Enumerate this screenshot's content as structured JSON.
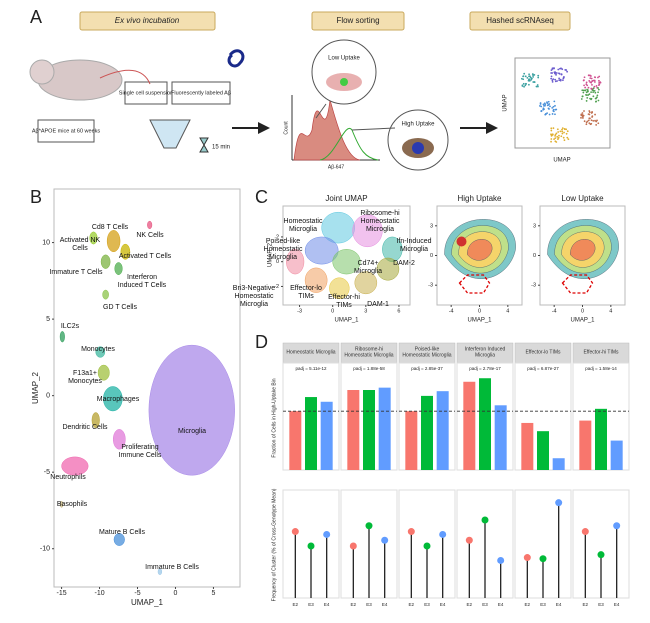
{
  "panel_a": {
    "letter": "A",
    "steps": [
      "Ex vivo incubation",
      "Flow sorting",
      "Hashed scRNAseq"
    ],
    "mouse_label": "Aβ*APOE mice at 60 weeks",
    "single_cell": "Single cell suspension",
    "fluor": "Fluorescently labeled Aβ",
    "time": "15 min",
    "low": "Low Uptake",
    "high": "High Uptake",
    "hist_y": "Count",
    "hist_x": "Aβ-647",
    "umap_x": "UMAP",
    "umap_y": "UMAP"
  },
  "panel_b": {
    "letter": "B",
    "x_label": "UMAP_1",
    "y_label": "UMAP_2",
    "xlim": [
      -16,
      8.5
    ],
    "ylim": [
      -12.5,
      13.5
    ],
    "xticks": [
      -15,
      -10,
      -5,
      0,
      5
    ],
    "yticks": [
      -10,
      -5,
      0,
      5,
      10
    ],
    "clusters": [
      {
        "name": "Activated NK Cells",
        "color": "#9acd32",
        "x": [
          -11.3,
          -10.3
        ],
        "y": [
          9.9,
          10.7
        ]
      },
      {
        "name": "Cd8 T Cells",
        "color": "#d4a017",
        "x": [
          -9,
          -7.3
        ],
        "y": [
          9.4,
          10.8
        ]
      },
      {
        "name": "NK Cells",
        "color": "#e75480",
        "x": [
          -3.7,
          -3.1
        ],
        "y": [
          10.9,
          11.4
        ]
      },
      {
        "name": "Activated T Cells",
        "color": "#c8b400",
        "x": [
          -7.2,
          -6
        ],
        "y": [
          8.9,
          9.9
        ]
      },
      {
        "name": "Immature T Cells",
        "color": "#7cb342",
        "x": [
          -9.8,
          -8.6
        ],
        "y": [
          8.3,
          9.2
        ]
      },
      {
        "name": "Interferon Induced T Cells",
        "color": "#4fae4f",
        "x": [
          -8,
          -7
        ],
        "y": [
          7.9,
          8.7
        ]
      },
      {
        "name": "GD T Cells",
        "color": "#8bc34a",
        "x": [
          -9.6,
          -8.8
        ],
        "y": [
          6.3,
          6.9
        ]
      },
      {
        "name": "ILC2s",
        "color": "#2e9e5b",
        "x": [
          -15.2,
          -14.6
        ],
        "y": [
          3.5,
          4.2
        ]
      },
      {
        "name": "Monocytes",
        "color": "#3fb8a0",
        "x": [
          -10.5,
          -9.3
        ],
        "y": [
          2.5,
          3.2
        ]
      },
      {
        "name": "F13a1+ Monocytes",
        "color": "#a0c040",
        "x": [
          -10.2,
          -8.7
        ],
        "y": [
          1.0,
          2.0
        ]
      },
      {
        "name": "Macrophages",
        "color": "#22b3a6",
        "x": [
          -9.5,
          -7
        ],
        "y": [
          -1,
          0.6
        ]
      },
      {
        "name": "Dendritic Cells",
        "color": "#b5a030",
        "x": [
          -11,
          -10
        ],
        "y": [
          -2.1,
          -1.1
        ]
      },
      {
        "name": "Proliferating Immune Cells",
        "color": "#e07ad8",
        "x": [
          -8.2,
          -6.6
        ],
        "y": [
          -3.5,
          -2.2
        ]
      },
      {
        "name": "Microglia",
        "color": "#a98be8",
        "x": [
          -3.5,
          7.8
        ],
        "y": [
          -5.2,
          3.3
        ]
      },
      {
        "name": "Neutrophils",
        "color": "#f06ab0",
        "x": [
          -15,
          -11.5
        ],
        "y": [
          -5.2,
          -4
        ]
      },
      {
        "name": "Basophils",
        "color": "#c6b580",
        "x": [
          -15.2,
          -14.8
        ],
        "y": [
          -7.3,
          -6.9
        ]
      },
      {
        "name": "Mature B Cells",
        "color": "#4a90d9",
        "x": [
          -8.1,
          -6.7
        ],
        "y": [
          -9.8,
          -9
        ]
      },
      {
        "name": "Immature B Cells",
        "color": "#9cc8e8",
        "x": [
          -2.3,
          -1.8
        ],
        "y": [
          -11.7,
          -11.3
        ]
      }
    ]
  },
  "panel_c": {
    "letter": "C",
    "joint": {
      "title": "Joint UMAP",
      "x_label": "UMAP_1",
      "y_label": "UMAP_2",
      "xlim": [
        -4.5,
        7
      ],
      "ylim": [
        -3.5,
        4.5
      ],
      "xticks": [
        -3,
        0,
        3,
        6
      ],
      "yticks": [
        -2,
        0,
        2
      ],
      "clusters": [
        {
          "name": "Homeostatic Microglia",
          "color": "#5ec8e0",
          "x": [
            -1,
            2
          ],
          "y": [
            1.5,
            4
          ]
        },
        {
          "name": "Ribosome-hi Homeostatic Microglia",
          "color": "#e58fe0",
          "x": [
            1.8,
            4.5
          ],
          "y": [
            1.2,
            3.8
          ]
        },
        {
          "name": "Poised-like Homeostatic Microglia",
          "color": "#6f8de8",
          "x": [
            -2.5,
            0.5
          ],
          "y": [
            -0.2,
            2
          ]
        },
        {
          "name": "Ifn-Induced Microglia",
          "color": "#3fb7a8",
          "x": [
            4.5,
            6.3
          ],
          "y": [
            0,
            2
          ]
        },
        {
          "name": "Cd74+ Microglia",
          "color": "#7cc46a",
          "x": [
            0,
            2.5
          ],
          "y": [
            -1,
            1
          ]
        },
        {
          "name": "DAM-2",
          "color": "#a6a83a",
          "x": [
            4,
            6
          ],
          "y": [
            -1.5,
            0.3
          ]
        },
        {
          "name": "Bri3-Negative Homeostatic Microglia",
          "color": "#f08aa0",
          "x": [
            -4.2,
            -2.6
          ],
          "y": [
            -1,
            1
          ]
        },
        {
          "name": "Effector-lo TIMs",
          "color": "#f0a060",
          "x": [
            -2.5,
            -0.5
          ],
          "y": [
            -2.5,
            -0.5
          ]
        },
        {
          "name": "Effector-hi TIMs",
          "color": "#e8c840",
          "x": [
            -0.3,
            1.5
          ],
          "y": [
            -3,
            -1.3
          ]
        },
        {
          "name": "DAM-1",
          "color": "#c9b050",
          "x": [
            2,
            4
          ],
          "y": [
            -2.6,
            -0.8
          ]
        }
      ]
    },
    "density": [
      {
        "title": "High Uptake",
        "x_label": "UMAP_1",
        "xlim": [
          -6,
          6
        ],
        "ylim": [
          -5,
          5
        ],
        "xticks": [
          -4,
          0,
          4
        ],
        "yticks": [
          -3,
          0,
          3
        ]
      },
      {
        "title": "Low Uptake",
        "x_label": "UMAP_1",
        "xlim": [
          -6,
          6
        ],
        "ylim": [
          -5,
          5
        ],
        "xticks": [
          -4,
          0,
          4
        ],
        "yticks": [
          -3,
          0,
          3
        ]
      }
    ]
  },
  "panel_d": {
    "letter": "D",
    "bar_y_label": "Fraction of Cells in High-Uptake Bin",
    "lollipop_y_label": "Frequency of Cluster (% of Cross-Genotype Mean)",
    "groups": [
      "E2",
      "E3",
      "E4"
    ],
    "colors": [
      "#f8766d",
      "#00ba38",
      "#619cff"
    ],
    "bar_ylim": [
      0,
      0.85
    ],
    "reference": 0.5,
    "lollipop_ylim": [
      0,
      180
    ],
    "facets": [
      {
        "title": "Homeostatic Microglia",
        "p_value": "padj = 5.11e-12",
        "fractions": [
          0.5,
          0.62,
          0.58
        ],
        "frequencies": [
          115,
          90,
          110
        ]
      },
      {
        "title": "Ribosome-hi Homeostatic Microglia",
        "p_value": "padj = 1.88e-58",
        "fractions": [
          0.68,
          0.68,
          0.7
        ],
        "frequencies": [
          90,
          125,
          100
        ]
      },
      {
        "title": "Poised-like Homeostatic Microglia",
        "p_value": "padj = 2.85e-37",
        "fractions": [
          0.5,
          0.63,
          0.67
        ],
        "frequencies": [
          115,
          90,
          110
        ]
      },
      {
        "title": "Interferon Induced Microglia",
        "p_value": "padj = 2.78e-17",
        "fractions": [
          0.75,
          0.78,
          0.55
        ],
        "frequencies": [
          100,
          135,
          65
        ]
      },
      {
        "title": "Effector-lo TIMs",
        "p_value": "padj = 6.87e-27",
        "fractions": [
          0.4,
          0.33,
          0.1
        ],
        "frequencies": [
          70,
          68,
          165
        ]
      },
      {
        "title": "Effector-hi TIMs",
        "p_value": "padj = 1.58e-14",
        "fractions": [
          0.42,
          0.52,
          0.25
        ],
        "frequencies": [
          115,
          75,
          125
        ]
      }
    ]
  }
}
